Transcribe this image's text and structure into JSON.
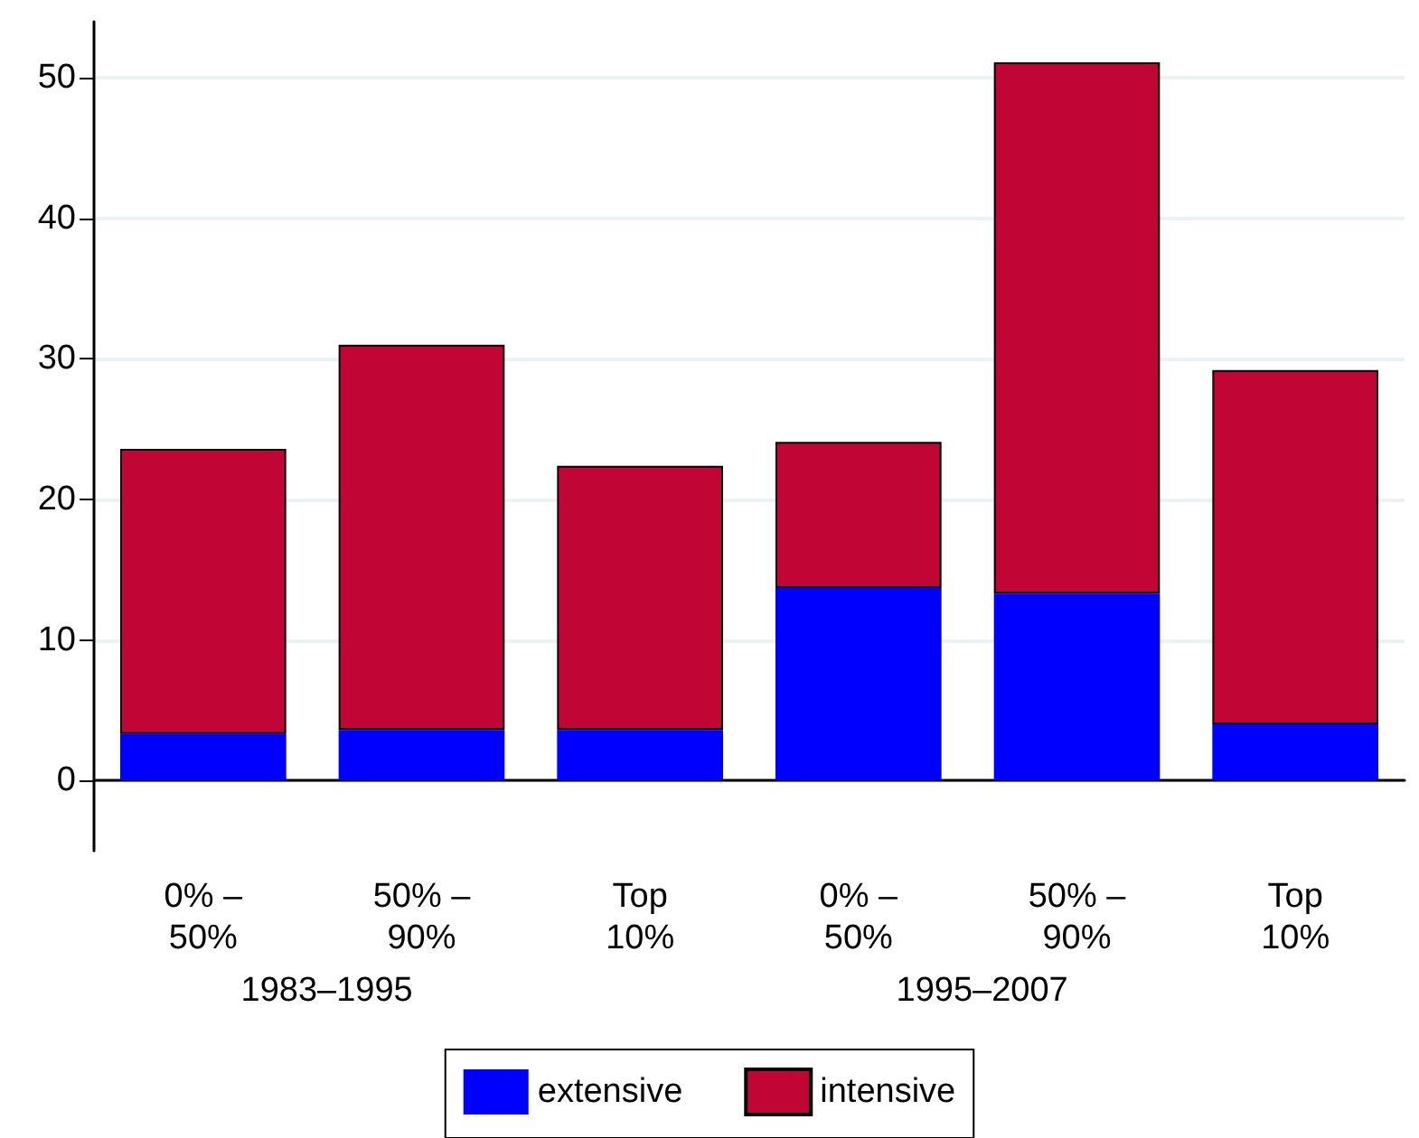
{
  "chart_data": {
    "type": "bar",
    "stacked": true,
    "categories": [
      "0% – 50%",
      "50% – 90%",
      "Top 10%",
      "0% – 50%",
      "50% – 90%",
      "Top 10%"
    ],
    "series": [
      {
        "name": "extensive",
        "color": "#0000ff",
        "values": [
          3.3,
          3.6,
          3.6,
          13.7,
          13.3,
          4.0
        ]
      },
      {
        "name": "intensive",
        "color": "#c10534",
        "values": [
          20.3,
          27.4,
          18.8,
          10.4,
          37.8,
          25.2
        ]
      }
    ],
    "annotations": [
      "1983–1995",
      "1995–2007"
    ],
    "ylim": [
      -5,
      54
    ],
    "yticks": [
      0,
      10,
      20,
      30,
      40,
      50
    ],
    "grid": "y",
    "legend": "bottom"
  }
}
